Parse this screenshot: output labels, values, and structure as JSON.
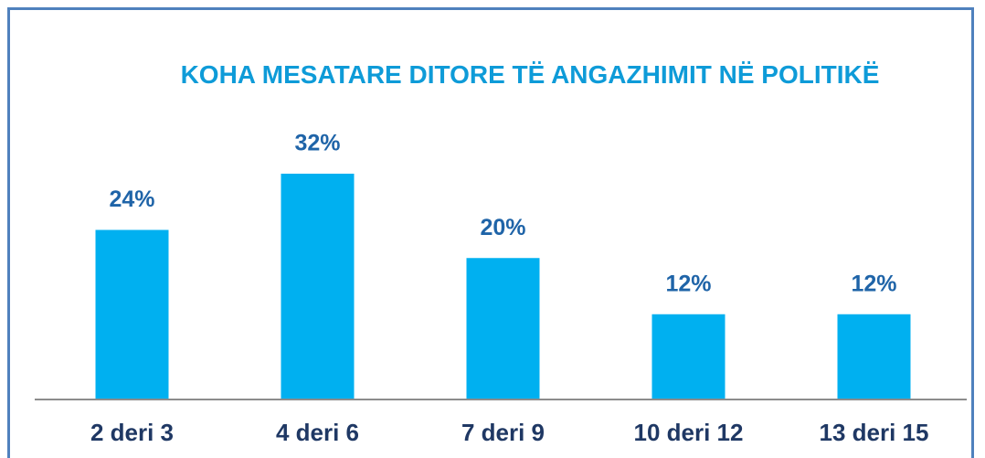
{
  "chart_data": {
    "type": "bar",
    "title": "KOHA MESATARE DITORE TË ANGAZHIMIT NË POLITIKË",
    "categories": [
      "2 deri 3",
      "4 deri 6",
      "7 deri 9",
      "10 deri 12",
      "13 deri 15"
    ],
    "values": [
      24,
      32,
      20,
      12,
      12
    ],
    "value_labels": [
      "24%",
      "32%",
      "20%",
      "12%",
      "12%"
    ],
    "color": "#00b0f0"
  }
}
